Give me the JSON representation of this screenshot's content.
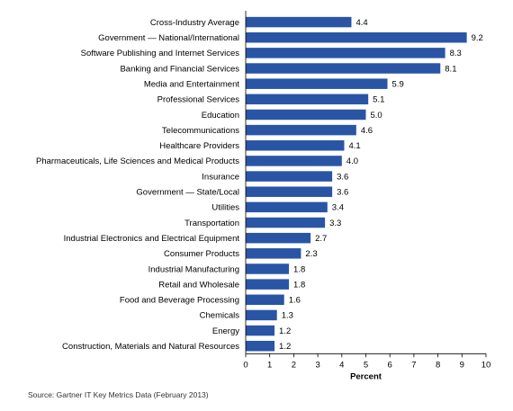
{
  "chart_data": {
    "type": "bar",
    "orientation": "horizontal",
    "categories": [
      "Cross-Industry Average",
      "Government — National/International",
      "Software Publishing and Internet Services",
      "Banking and Financial Services",
      "Media and Entertainment",
      "Professional Services",
      "Education",
      "Telecommunications",
      "Healthcare Providers",
      "Pharmaceuticals, Life Sciences and Medical Products",
      "Insurance",
      "Government — State/Local",
      "Utilities",
      "Transportation",
      "Industrial Electronics and Electrical Equipment",
      "Consumer Products",
      "Industrial Manufacturing",
      "Retail and Wholesale",
      "Food and Beverage Processing",
      "Chemicals",
      "Energy",
      "Construction, Materials and Natural Resources"
    ],
    "values": [
      4.4,
      9.2,
      8.3,
      8.1,
      5.9,
      5.1,
      5.0,
      4.6,
      4.1,
      4.0,
      3.6,
      3.6,
      3.4,
      3.3,
      2.7,
      2.3,
      1.8,
      1.8,
      1.6,
      1.3,
      1.2,
      1.2
    ],
    "value_labels": [
      "4.4",
      "9.2",
      "8.3",
      "8.1",
      "5.9",
      "5.1",
      "5.0",
      "4.6",
      "4.1",
      "4.0",
      "3.6",
      "3.6",
      "3.4",
      "3.3",
      "2.7",
      "2.3",
      "1.8",
      "1.8",
      "1.6",
      "1.3",
      "1.2",
      "1.2"
    ],
    "xlabel": "Percent",
    "xlim": [
      0,
      10
    ],
    "xticks": [
      "0",
      "1",
      "2",
      "3",
      "4",
      "5",
      "6",
      "7",
      "8",
      "9",
      "10"
    ],
    "bar_color": "#2A55A5",
    "grid": false,
    "legend": "none"
  },
  "source_note": "Source: Gartner IT Key Metrics Data (February 2013)"
}
